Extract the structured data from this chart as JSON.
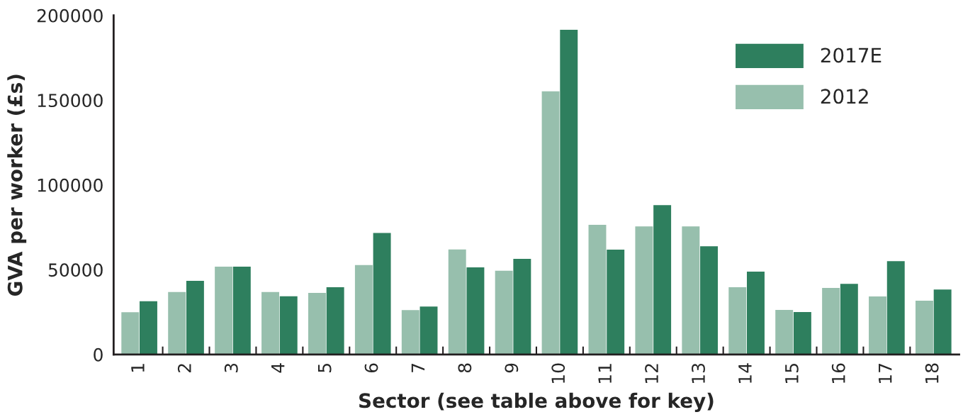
{
  "chart_data": {
    "type": "bar",
    "xlabel": "Sector (see table above for key)",
    "ylabel": "GVA per worker (£s)",
    "categories": [
      "1",
      "2",
      "3",
      "4",
      "5",
      "6",
      "7",
      "8",
      "9",
      "10",
      "11",
      "12",
      "13",
      "14",
      "15",
      "16",
      "17",
      "18"
    ],
    "series": [
      {
        "name": "2012",
        "color": "#97bfad",
        "values": [
          24900,
          36800,
          51800,
          36800,
          36300,
          52700,
          26200,
          61900,
          49400,
          155200,
          76500,
          75500,
          75500,
          39700,
          26300,
          39200,
          34200,
          31700
        ]
      },
      {
        "name": "2017E",
        "color": "#2e7f5e",
        "values": [
          31400,
          43400,
          51800,
          34300,
          39700,
          71700,
          28300,
          51400,
          56400,
          191500,
          61800,
          88100,
          63800,
          48900,
          25000,
          41600,
          55000,
          38300
        ]
      }
    ],
    "ylim": [
      0,
      200000
    ],
    "yticks": [
      0,
      50000,
      100000,
      150000,
      200000
    ],
    "grid": false,
    "legend": "top right"
  }
}
